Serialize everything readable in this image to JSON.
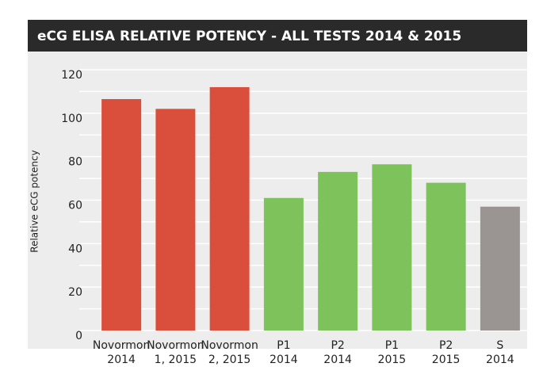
{
  "chart_data": {
    "type": "bar",
    "title": "eCG ELISA RELATIVE POTENCY - ALL TESTS 2014 & 2015",
    "y_label": "Relative eCG potency",
    "categories": [
      [
        "Novormon",
        "2014"
      ],
      [
        "Novormon",
        "1, 2015"
      ],
      [
        "Novormon",
        "2, 2015"
      ],
      [
        "P1",
        "2014"
      ],
      [
        "P2",
        "2014"
      ],
      [
        "P1",
        "2015"
      ],
      [
        "P2",
        "2015"
      ],
      [
        "S",
        "2014"
      ]
    ],
    "values": [
      106.5,
      102,
      112,
      61,
      73,
      76.5,
      68,
      57
    ],
    "colors": [
      "#d94f3b",
      "#d94f3b",
      "#d94f3b",
      "#7dc25b",
      "#7dc25b",
      "#7dc25b",
      "#7dc25b",
      "#9a9593"
    ],
    "ylim": [
      0,
      120
    ],
    "yticks": [
      0,
      20,
      40,
      60,
      80,
      100,
      120
    ],
    "minor_yticks": [
      10,
      30,
      50,
      70,
      90,
      110
    ],
    "grid": true
  }
}
